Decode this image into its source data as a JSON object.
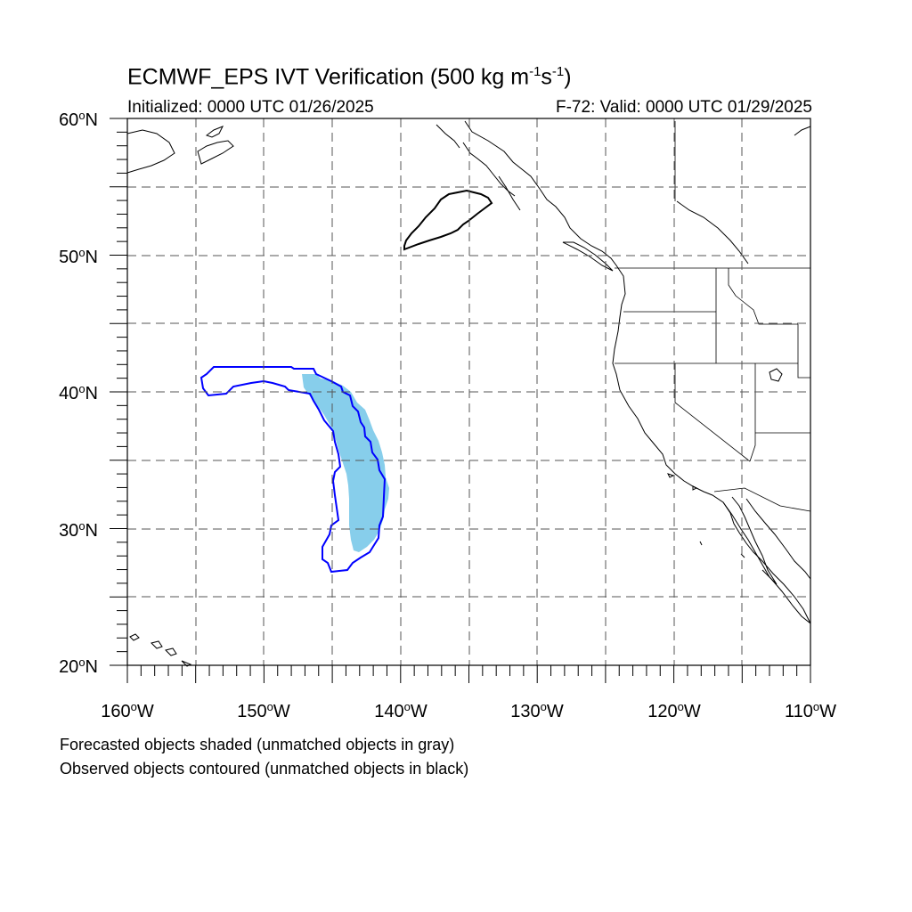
{
  "title": {
    "prefix": "ECMWF_EPS IVT Verification (500 kg m",
    "exp1": "-1",
    "mid": "s",
    "exp2": "-1",
    "suffix": ")"
  },
  "initialized": "Initialized: 0000 UTC 01/26/2025",
  "valid": "F-72: Valid: 0000 UTC 01/29/2025",
  "lat_labels": [
    {
      "value": "60",
      "hemi": "N"
    },
    {
      "value": "50",
      "hemi": "N"
    },
    {
      "value": "40",
      "hemi": "N"
    },
    {
      "value": "30",
      "hemi": "N"
    },
    {
      "value": "20",
      "hemi": "N"
    }
  ],
  "lon_labels": [
    {
      "value": "160",
      "hemi": "W"
    },
    {
      "value": "150",
      "hemi": "W"
    },
    {
      "value": "140",
      "hemi": "W"
    },
    {
      "value": "130",
      "hemi": "W"
    },
    {
      "value": "120",
      "hemi": "W"
    },
    {
      "value": "110",
      "hemi": "W"
    }
  ],
  "notes": [
    "Forecasted objects shaded (unmatched objects in gray)",
    "Observed objects contoured (unmatched objects in black)"
  ],
  "colors": {
    "forecast_matched_fill": "#87ceeb",
    "observed_matched_contour": "#0000ff",
    "observed_unmatched_contour": "#000000",
    "coastline": "#000000",
    "grid": "#000000"
  }
}
